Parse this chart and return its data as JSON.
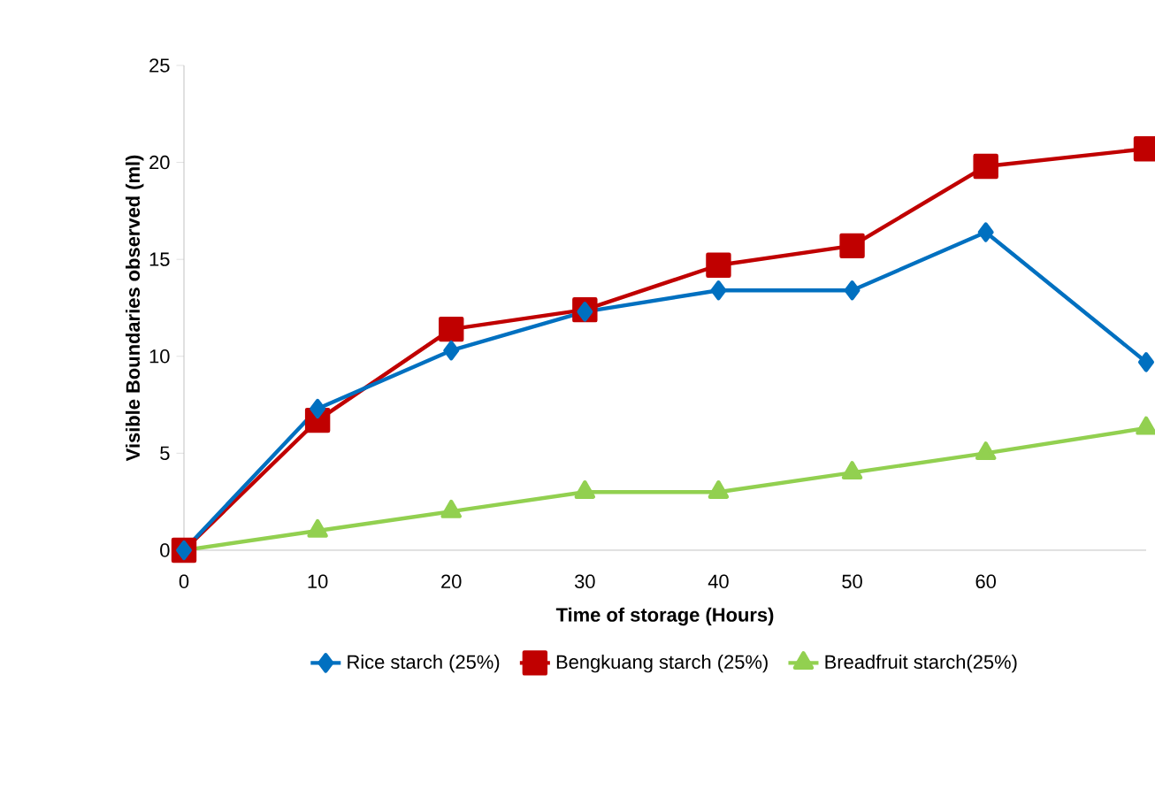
{
  "chart_data": {
    "type": "line",
    "xlabel": "Time of storage  (Hours)",
    "ylabel": "Visible Boundaries observed (ml)",
    "x": [
      0,
      10,
      20,
      30,
      40,
      50,
      60,
      72
    ],
    "xlim": [
      0,
      72
    ],
    "xticks": [
      0,
      10,
      20,
      30,
      40,
      50,
      60
    ],
    "ylim": [
      0,
      25
    ],
    "yticks": [
      0,
      5,
      10,
      15,
      20,
      25
    ],
    "grid": false,
    "legend": "bottom",
    "series": [
      {
        "name": "Rice starch (25%)",
        "color": "#0070c0",
        "marker": "diamond",
        "values": [
          0,
          7.3,
          10.3,
          12.3,
          13.4,
          13.4,
          16.4,
          9.7
        ]
      },
      {
        "name": "Bengkuang starch (25%)",
        "color": "#c00000",
        "marker": "square",
        "values": [
          0,
          6.7,
          11.4,
          12.4,
          14.7,
          15.7,
          19.8,
          20.7
        ]
      },
      {
        "name": "Breadfruit starch(25%)",
        "color": "#92d050",
        "marker": "triangle",
        "values": [
          0,
          1,
          2,
          3,
          3,
          4,
          5,
          6.3
        ]
      }
    ]
  }
}
